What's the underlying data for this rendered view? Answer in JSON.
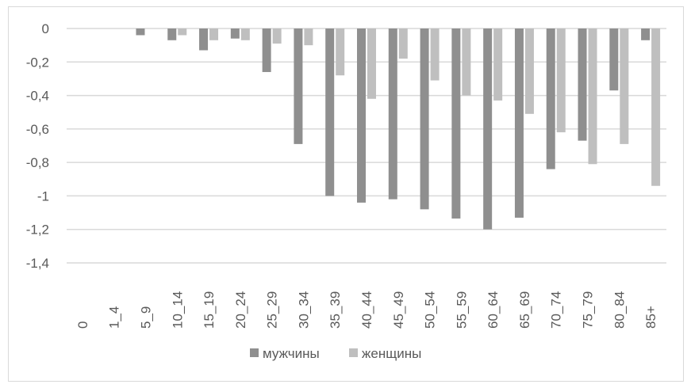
{
  "chart_data": {
    "type": "bar",
    "categories": [
      "0",
      "1_4",
      "5_9",
      "10_14",
      "15_19",
      "20_24",
      "25_29",
      "30_34",
      "35_39",
      "40_44",
      "45_49",
      "50_54",
      "55_59",
      "60_64",
      "65_69",
      "70_74",
      "75_79",
      "80_84",
      "85+"
    ],
    "series": [
      {
        "name": "мужчины",
        "color": "#8f8f8f",
        "values": [
          0,
          0,
          -0.04,
          -0.07,
          -0.13,
          -0.06,
          -0.26,
          -0.69,
          -1.0,
          -1.04,
          -1.02,
          -1.08,
          -1.135,
          -1.2,
          -1.13,
          -0.84,
          -0.67,
          -0.37,
          -0.07
        ]
      },
      {
        "name": "женщины",
        "color": "#bfbfbf",
        "values": [
          0,
          0,
          0,
          -0.04,
          -0.07,
          -0.07,
          -0.09,
          -0.1,
          -0.28,
          -0.42,
          -0.18,
          -0.31,
          -0.4,
          -0.43,
          -0.51,
          -0.62,
          -0.81,
          -0.69,
          -0.94
        ]
      }
    ],
    "yticks": [
      "0",
      "-0,2",
      "-0,4",
      "-0,6",
      "-0,8",
      "-1",
      "-1,2",
      "-1,4"
    ],
    "ylim": [
      -1.4,
      0
    ],
    "grid": true,
    "legend": "bottom"
  }
}
